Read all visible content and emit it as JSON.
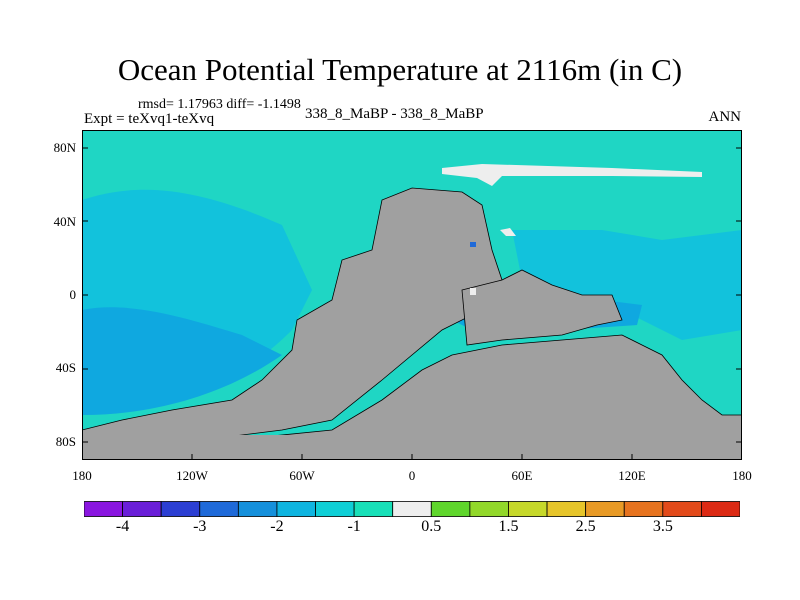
{
  "title": "Ocean Potential Temperature at 2116m (in C)",
  "stats": "rmsd= 1.17963 diff= -1.1498",
  "expt": "Expt = teXvq1-teXvq",
  "case": "338_8_MaBP - 338_8_MaBP",
  "season": "ANN",
  "lat_ticks": [
    {
      "label": "80N",
      "value": 80
    },
    {
      "label": "40N",
      "value": 40
    },
    {
      "label": "0",
      "value": 0
    },
    {
      "label": "40S",
      "value": -40
    },
    {
      "label": "80S",
      "value": -80
    }
  ],
  "lon_ticks": [
    {
      "label": "180",
      "value": -180
    },
    {
      "label": "120W",
      "value": -120
    },
    {
      "label": "60W",
      "value": -60
    },
    {
      "label": "0",
      "value": 0
    },
    {
      "label": "60E",
      "value": 60
    },
    {
      "label": "120E",
      "value": 120
    },
    {
      "label": "180",
      "value": 180
    }
  ],
  "colorbar": {
    "colors": [
      "#8a16e0",
      "#6a1fd8",
      "#2c3fd3",
      "#1f6ad9",
      "#1590db",
      "#0fb5e0",
      "#0fcfd6",
      "#18e0b8",
      "#eeeeee",
      "#5fd62c",
      "#92d82a",
      "#c6d82a",
      "#e6c52a",
      "#e89a26",
      "#e6731f",
      "#e24a1a",
      "#dc2a14"
    ],
    "labels": [
      {
        "text": "-4",
        "boundary": 1
      },
      {
        "text": "-3",
        "boundary": 3
      },
      {
        "text": "-2",
        "boundary": 5
      },
      {
        "text": "-1",
        "boundary": 7
      },
      {
        "text": "0.5",
        "boundary": 9
      },
      {
        "text": "1.5",
        "boundary": 11
      },
      {
        "text": "2.5",
        "boundary": 13
      },
      {
        "text": "3.5",
        "boundary": 15
      }
    ]
  },
  "map_colors": {
    "ocean": "#1fd6c4",
    "ocean_cool": "#12c2dc",
    "ocean_cold": "#0fa8e0",
    "land": "#a0a0a0",
    "white": "#eeeeee"
  }
}
